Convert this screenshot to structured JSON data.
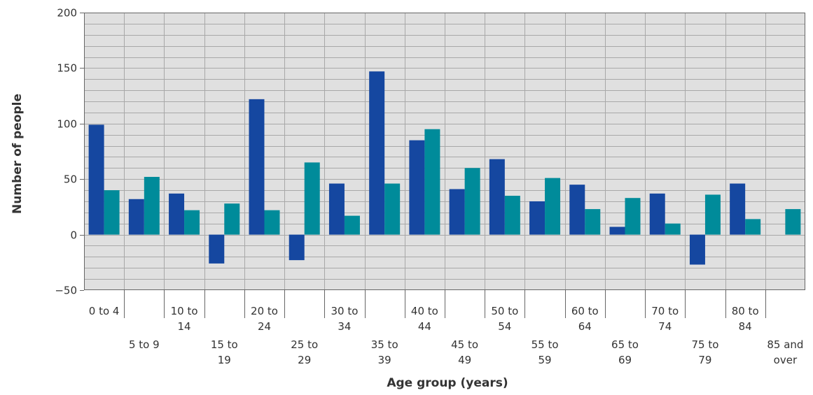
{
  "chart_data": {
    "type": "bar",
    "title": "",
    "xlabel": "Age group (years)",
    "ylabel": "Number of people",
    "ylim": [
      -50,
      200
    ],
    "y_ticks": [
      "200",
      "150",
      "100",
      "50",
      "0",
      "−50"
    ],
    "y_tick_values": [
      200,
      150,
      100,
      50,
      0,
      -50
    ],
    "grid": true,
    "legend": "none",
    "categories": [
      [
        "0 to 4"
      ],
      [
        "5 to 9"
      ],
      [
        "10 to",
        "14"
      ],
      [
        "15 to",
        "19"
      ],
      [
        "20 to",
        "24"
      ],
      [
        "25 to",
        "29"
      ],
      [
        "30 to",
        "34"
      ],
      [
        "35 to",
        "39"
      ],
      [
        "40 to",
        "44"
      ],
      [
        "45 to",
        "49"
      ],
      [
        "50 to",
        "54"
      ],
      [
        "55 to",
        "59"
      ],
      [
        "60 to",
        "64"
      ],
      [
        "65 to",
        "69"
      ],
      [
        "70 to",
        "74"
      ],
      [
        "75 to",
        "79"
      ],
      [
        "80 to",
        "84"
      ],
      [
        "85 and",
        "over"
      ]
    ],
    "series": [
      {
        "color": "#1547a0",
        "values": [
          99,
          32,
          37,
          -26,
          122,
          -23,
          46,
          147,
          85,
          41,
          68,
          30,
          45,
          7,
          37,
          -27,
          46,
          0
        ]
      },
      {
        "color": "#008b9a",
        "values": [
          40,
          52,
          22,
          28,
          22,
          65,
          17,
          46,
          95,
          60,
          35,
          51,
          23,
          33,
          10,
          36,
          14,
          23
        ]
      }
    ],
    "colors": {
      "background": "#e0e0e0",
      "grid_minor": "#a8a8a8",
      "axis": "#666666"
    }
  }
}
